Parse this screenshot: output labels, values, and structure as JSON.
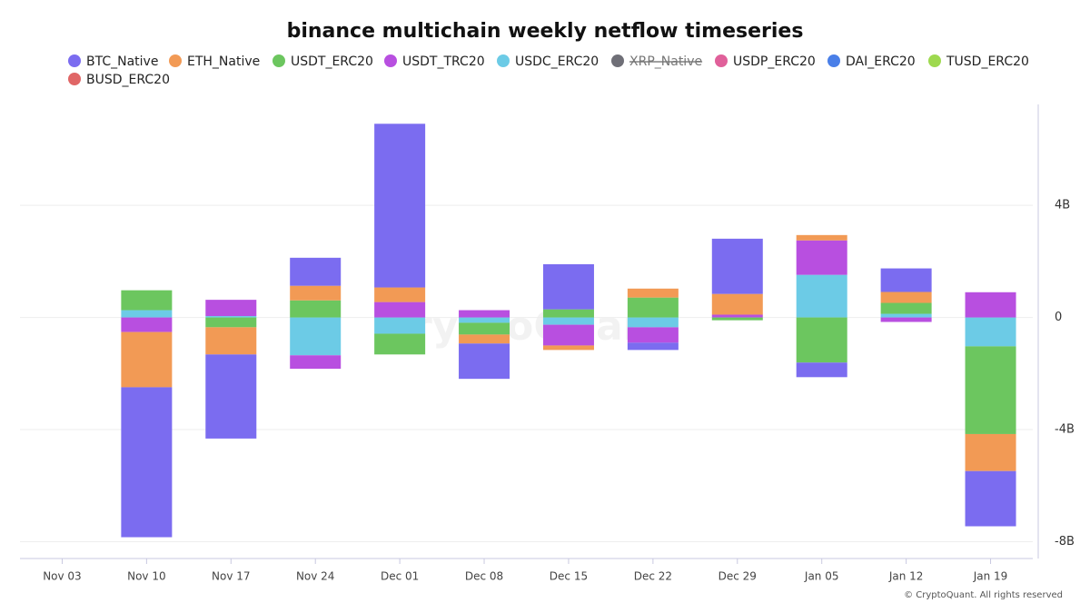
{
  "chart_data": {
    "type": "bar",
    "stacked": true,
    "title": "binance multichain weekly netflow timeseries",
    "watermark": "CryptoQuant",
    "footer": "© CryptoQuant. All rights reserved",
    "categories": [
      "Nov 03",
      "Nov 10",
      "Nov 17",
      "Nov 24",
      "Dec 01",
      "Dec 08",
      "Dec 15",
      "Dec 22",
      "Dec 29",
      "Jan 05",
      "Jan 12",
      "Jan 19"
    ],
    "series": [
      {
        "name": "BTC_Native",
        "color": "#7b6cf0",
        "values": [
          null,
          -5.35,
          -3.0,
          1.0,
          5.84,
          -1.26,
          1.61,
          -0.26,
          1.97,
          -0.52,
          0.84,
          -1.97
        ]
      },
      {
        "name": "ETH_Native",
        "color": "#f29a55",
        "values": [
          null,
          -1.97,
          -0.97,
          0.52,
          0.52,
          -0.32,
          -0.16,
          0.32,
          0.74,
          0.19,
          0.39,
          -1.32
        ]
      },
      {
        "name": "USDT_ERC20",
        "color": "#6cc65f",
        "values": [
          null,
          0.71,
          -0.35,
          0.61,
          -0.74,
          -0.42,
          0.29,
          0.71,
          -0.1,
          -1.61,
          0.39,
          -3.13
        ]
      },
      {
        "name": "USDT_TRC20",
        "color": "#b84fe0",
        "values": [
          null,
          -0.52,
          0.58,
          -0.48,
          0.55,
          0.26,
          -0.74,
          -0.55,
          0.1,
          1.23,
          -0.16,
          0.9
        ]
      },
      {
        "name": "USDC_ERC20",
        "color": "#6ccbe6",
        "values": [
          null,
          0.26,
          0.05,
          -1.35,
          -0.58,
          -0.19,
          -0.26,
          -0.35,
          null,
          1.52,
          0.13,
          -1.03
        ]
      },
      {
        "name": "XRP_Native",
        "color": "#6f6f77",
        "hidden": true,
        "values": [
          null,
          null,
          null,
          null,
          null,
          null,
          null,
          null,
          null,
          null,
          null,
          null
        ]
      },
      {
        "name": "USDP_ERC20",
        "color": "#e0609a",
        "values": [
          null,
          null,
          null,
          null,
          null,
          null,
          null,
          null,
          null,
          null,
          null,
          null
        ]
      },
      {
        "name": "DAI_ERC20",
        "color": "#4a7fe8",
        "values": [
          null,
          null,
          null,
          null,
          null,
          null,
          null,
          null,
          null,
          null,
          null,
          null
        ]
      },
      {
        "name": "TUSD_ERC20",
        "color": "#9ed94f",
        "values": [
          null,
          null,
          null,
          null,
          null,
          null,
          null,
          null,
          null,
          null,
          null,
          null
        ]
      },
      {
        "name": "BUSD_ERC20",
        "color": "#e06666",
        "values": [
          null,
          null,
          null,
          null,
          null,
          null,
          null,
          null,
          null,
          null,
          null,
          null
        ]
      }
    ],
    "ylim": [
      -8.6,
      7.6
    ],
    "yticks": [
      {
        "value": -8,
        "label": "-8B"
      },
      {
        "value": -4,
        "label": "-4B"
      },
      0,
      {
        "value": 4,
        "label": "4B"
      }
    ],
    "y_axis_side": "right",
    "grid": true
  }
}
